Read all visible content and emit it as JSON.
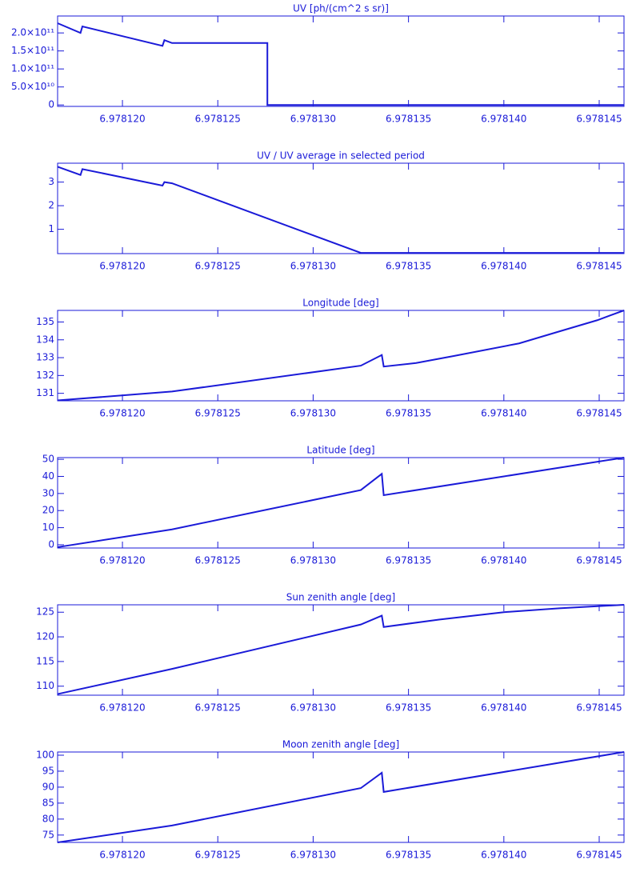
{
  "chart_data": [
    {
      "type": "line",
      "title": "UV [ph/(cm^2 s sr)]",
      "color": "#1a1ad8",
      "x": [
        6.9781166,
        6.9781178,
        6.9781179,
        6.9781221,
        6.9781222,
        6.9781226,
        6.9781276,
        6.9781276,
        6.9781463
      ],
      "values": [
        227000000000,
        200000000000,
        218000000000,
        164000000000,
        180000000000,
        172000000000,
        172000000000,
        0,
        0
      ],
      "xlim": [
        6.9781166,
        6.9781463
      ],
      "ylim": [
        -4000000000,
        247000000000
      ],
      "xticks": [
        {
          "value": 6.97812,
          "label": "6.978120"
        },
        {
          "value": 6.978125,
          "label": "6.978125"
        },
        {
          "value": 6.97813,
          "label": "6.978130"
        },
        {
          "value": 6.978135,
          "label": "6.978135"
        },
        {
          "value": 6.97814,
          "label": "6.978140"
        },
        {
          "value": 6.978145,
          "label": "6.978145"
        }
      ],
      "yticks": [
        0,
        {
          "value": 50000000000,
          "label": "5.0×10¹⁰"
        },
        {
          "value": 100000000000,
          "label": "1.0×10¹¹"
        },
        {
          "value": 150000000000,
          "label": "1.5×10¹¹"
        },
        {
          "value": 200000000000,
          "label": "2.0×10¹¹"
        }
      ]
    },
    {
      "type": "line",
      "title": "UV / UV average in selected period",
      "color": "#1a1ad8",
      "x": [
        6.9781166,
        6.9781178,
        6.9781179,
        6.9781221,
        6.9781222,
        6.9781226,
        6.9781325,
        6.9781463
      ],
      "values": [
        3.65,
        3.3,
        3.55,
        2.85,
        3.0,
        2.95,
        0,
        0
      ],
      "xlim": [
        6.9781166,
        6.9781463
      ],
      "ylim": [
        -0.03,
        3.8
      ],
      "xticks": [
        {
          "value": 6.97812,
          "label": "6.978120"
        },
        {
          "value": 6.978125,
          "label": "6.978125"
        },
        {
          "value": 6.97813,
          "label": "6.978130"
        },
        {
          "value": 6.978135,
          "label": "6.978135"
        },
        {
          "value": 6.97814,
          "label": "6.978140"
        },
        {
          "value": 6.978145,
          "label": "6.978145"
        }
      ],
      "yticks": [
        1,
        2,
        3
      ]
    },
    {
      "type": "line",
      "title": "Longitude [deg]",
      "color": "#1a1ad8",
      "x": [
        6.9781166,
        6.9781226,
        6.9781325,
        6.9781336,
        6.9781337,
        6.9781354,
        6.9781374,
        6.9781408,
        6.978143,
        6.9781449,
        6.9781463
      ],
      "values": [
        130.6,
        131.1,
        132.55,
        133.15,
        132.5,
        132.7,
        133.1,
        133.8,
        134.5,
        135.1,
        135.65
      ],
      "xlim": [
        6.9781166,
        6.9781463
      ],
      "ylim": [
        130.58,
        135.65
      ],
      "xticks": [
        {
          "value": 6.97812,
          "label": "6.978120"
        },
        {
          "value": 6.978125,
          "label": "6.978125"
        },
        {
          "value": 6.97813,
          "label": "6.978130"
        },
        {
          "value": 6.978135,
          "label": "6.978135"
        },
        {
          "value": 6.97814,
          "label": "6.978140"
        },
        {
          "value": 6.978145,
          "label": "6.978145"
        }
      ],
      "yticks": [
        131,
        132,
        133,
        134,
        135
      ]
    },
    {
      "type": "line",
      "title": "Latitude [deg]",
      "color": "#1a1ad8",
      "x": [
        6.9781166,
        6.9781226,
        6.9781325,
        6.9781336,
        6.9781337,
        6.97814,
        6.9781463
      ],
      "values": [
        -1.4,
        9,
        32,
        41.5,
        29,
        40,
        51
      ],
      "xlim": [
        6.9781166,
        6.9781463
      ],
      "ylim": [
        -1.9,
        51
      ],
      "xticks": [
        {
          "value": 6.97812,
          "label": "6.978120"
        },
        {
          "value": 6.978125,
          "label": "6.978125"
        },
        {
          "value": 6.97813,
          "label": "6.978130"
        },
        {
          "value": 6.978135,
          "label": "6.978135"
        },
        {
          "value": 6.97814,
          "label": "6.978140"
        },
        {
          "value": 6.978145,
          "label": "6.978145"
        }
      ],
      "yticks": [
        0,
        10,
        20,
        30,
        40,
        50
      ]
    },
    {
      "type": "line",
      "title": "Sun zenith angle [deg]",
      "color": "#1a1ad8",
      "x": [
        6.9781166,
        6.9781226,
        6.9781325,
        6.9781336,
        6.9781337,
        6.9781366,
        6.97814,
        6.9781429,
        6.9781463
      ],
      "values": [
        108.4,
        113.5,
        122.5,
        124.3,
        122,
        123.5,
        125,
        125.8,
        126.5
      ],
      "xlim": [
        6.9781166,
        6.9781463
      ],
      "ylim": [
        108.17,
        126.5
      ],
      "xticks": [
        {
          "value": 6.97812,
          "label": "6.978120"
        },
        {
          "value": 6.978125,
          "label": "6.978125"
        },
        {
          "value": 6.97813,
          "label": "6.978130"
        },
        {
          "value": 6.978135,
          "label": "6.978135"
        },
        {
          "value": 6.97814,
          "label": "6.978140"
        },
        {
          "value": 6.978145,
          "label": "6.978145"
        }
      ],
      "yticks": [
        110,
        115,
        120,
        125
      ]
    },
    {
      "type": "line",
      "title": "Moon zenith angle [deg]",
      "color": "#1a1ad8",
      "x": [
        6.9781166,
        6.9781226,
        6.9781325,
        6.9781336,
        6.9781337,
        6.9781463
      ],
      "values": [
        72.7,
        78,
        89.7,
        94.5,
        88.5,
        101
      ],
      "xlim": [
        6.9781166,
        6.9781463
      ],
      "ylim": [
        72.7,
        101
      ],
      "xticks": [
        {
          "value": 6.97812,
          "label": "6.978120"
        },
        {
          "value": 6.978125,
          "label": "6.978125"
        },
        {
          "value": 6.97813,
          "label": "6.978130"
        },
        {
          "value": 6.978135,
          "label": "6.978135"
        },
        {
          "value": 6.97814,
          "label": "6.978140"
        },
        {
          "value": 6.978145,
          "label": "6.978145"
        }
      ],
      "yticks": [
        75,
        80,
        85,
        90,
        95,
        100
      ]
    }
  ]
}
